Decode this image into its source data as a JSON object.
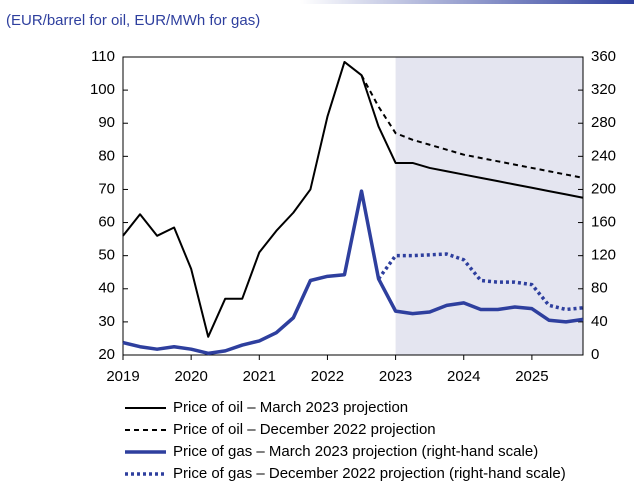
{
  "chart_data": {
    "type": "line",
    "subtitle": "(EUR/barrel for oil, EUR/MWh for gas)",
    "x": [
      2019,
      2019.25,
      2019.5,
      2019.75,
      2020,
      2020.25,
      2020.5,
      2020.75,
      2021,
      2021.25,
      2021.5,
      2021.75,
      2022,
      2022.25,
      2022.5,
      2022.75,
      2023,
      2023.25,
      2023.5,
      2023.75,
      2024,
      2024.25,
      2024.5,
      2024.75,
      2025,
      2025.25,
      2025.5,
      2025.75
    ],
    "series": [
      {
        "name": "Price of oil – March 2023 projection",
        "color": "#000000",
        "dash": "solid",
        "width": 2,
        "values": [
          56,
          62.5,
          56,
          58.5,
          46,
          25.5,
          37,
          37,
          51,
          57.5,
          63,
          70,
          92,
          108.5,
          104.5,
          89,
          78,
          78,
          76.5,
          75.5,
          74.5,
          73.5,
          72.5,
          71.5,
          70.5,
          69.5,
          68.5,
          67.5
        ]
      },
      {
        "name": "Price of oil – December 2022 projection",
        "color": "#000000",
        "dash": "dashed",
        "width": 2,
        "values": [
          null,
          null,
          null,
          null,
          null,
          null,
          null,
          null,
          null,
          null,
          null,
          null,
          null,
          null,
          104.5,
          95,
          87,
          85,
          83.5,
          82,
          80.5,
          79.5,
          78.5,
          77.5,
          76.5,
          75.5,
          74.5,
          73.5
        ]
      },
      {
        "name": "Price of gas – March 2023 projection (right-hand scale)",
        "color": "#2e3f9e",
        "dash": "solid",
        "width": 3.5,
        "axis": "y2",
        "values": [
          15,
          10,
          7,
          10,
          7,
          2,
          5,
          12,
          17,
          27,
          45,
          90,
          95,
          97,
          198,
          92,
          53,
          50,
          52,
          60,
          63,
          55,
          55,
          58,
          56,
          42,
          40,
          43
        ]
      },
      {
        "name": "Price of gas – December 2022 projection (right-hand scale)",
        "color": "#2e3f9e",
        "dash": "dotted",
        "width": 3.5,
        "axis": "y2",
        "values": [
          null,
          null,
          null,
          null,
          null,
          null,
          null,
          null,
          null,
          null,
          null,
          null,
          null,
          null,
          null,
          92,
          120,
          120,
          121,
          122,
          115,
          90,
          88,
          88,
          85,
          60,
          55,
          57
        ]
      }
    ],
    "xlim": [
      2019,
      2025.75
    ],
    "xticks": [
      2019,
      2020,
      2021,
      2022,
      2023,
      2024,
      2025
    ],
    "ylim": [
      20,
      110
    ],
    "yticks": [
      20,
      30,
      40,
      50,
      60,
      70,
      80,
      90,
      100,
      110
    ],
    "y2lim": [
      0,
      360
    ],
    "y2ticks": [
      0,
      40,
      80,
      120,
      160,
      200,
      240,
      280,
      320,
      360
    ],
    "shaded_region": {
      "x": [
        2023,
        2025.75
      ],
      "color": "#e4e5f0"
    }
  }
}
